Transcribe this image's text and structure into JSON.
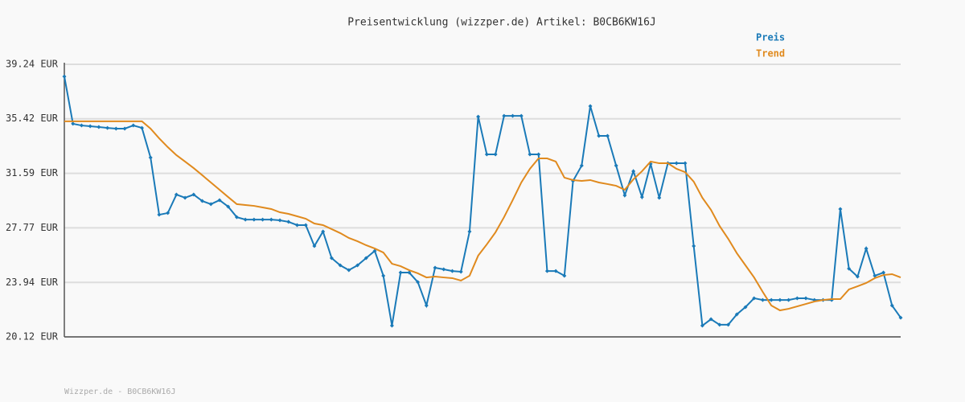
{
  "chart_data": {
    "type": "line",
    "title": "Preisentwicklung (wizzper.de) Artikel: B0CB6KW16J",
    "footer": "Wizzper.de - B0CB6KW16J",
    "ylim": [
      20.12,
      39.24
    ],
    "yticks": [
      {
        "value": 20.12,
        "label": "20.12 EUR"
      },
      {
        "value": 23.94,
        "label": "23.94 EUR"
      },
      {
        "value": 27.77,
        "label": "27.77 EUR"
      },
      {
        "value": 31.59,
        "label": "31.59 EUR"
      },
      {
        "value": 35.42,
        "label": "35.42 EUR"
      },
      {
        "value": 39.24,
        "label": "39.24 EUR"
      }
    ],
    "grid": true,
    "legend": "top-right",
    "series": [
      {
        "name": "Preis",
        "color": "#1a7ab8",
        "markers": true,
        "values": [
          38.39,
          35.07,
          34.95,
          34.9,
          34.84,
          34.78,
          34.73,
          34.73,
          34.95,
          34.78,
          32.7,
          28.69,
          28.81,
          30.1,
          29.88,
          30.1,
          29.65,
          29.43,
          29.71,
          29.26,
          28.52,
          28.35,
          28.35,
          28.35,
          28.35,
          28.3,
          28.19,
          27.96,
          27.96,
          26.49,
          27.51,
          25.65,
          25.14,
          24.8,
          25.14,
          25.65,
          26.15,
          24.41,
          20.91,
          24.63,
          24.63,
          23.96,
          22.32,
          24.97,
          24.86,
          24.74,
          24.69,
          27.51,
          35.57,
          32.92,
          32.92,
          35.62,
          35.62,
          35.62,
          32.92,
          32.92,
          24.74,
          24.74,
          24.41,
          31.06,
          32.13,
          36.31,
          34.22,
          34.22,
          32.13,
          30.05,
          31.74,
          29.93,
          32.25,
          29.88,
          32.3,
          32.3,
          32.3,
          26.49,
          20.91,
          21.36,
          20.97,
          20.97,
          21.7,
          22.21,
          22.83,
          22.71,
          22.71,
          22.71,
          22.71,
          22.83,
          22.83,
          22.71,
          22.71,
          22.71,
          29.09,
          24.91,
          24.35,
          26.32,
          24.41,
          24.63,
          22.32,
          21.47
        ]
      },
      {
        "name": "Trend",
        "color": "#e08a1e",
        "markers": false,
        "values": [
          35.24,
          35.24,
          35.24,
          35.24,
          35.24,
          35.24,
          35.24,
          35.24,
          35.24,
          35.24,
          34.73,
          34.05,
          33.43,
          32.87,
          32.42,
          31.96,
          31.46,
          30.95,
          30.44,
          29.93,
          29.43,
          29.37,
          29.31,
          29.2,
          29.09,
          28.86,
          28.75,
          28.58,
          28.41,
          28.07,
          27.96,
          27.68,
          27.4,
          27.06,
          26.83,
          26.55,
          26.32,
          26.04,
          25.25,
          25.08,
          24.8,
          24.58,
          24.29,
          24.35,
          24.29,
          24.24,
          24.07,
          24.41,
          25.82,
          26.61,
          27.45,
          28.52,
          29.71,
          30.95,
          31.91,
          32.64,
          32.64,
          32.42,
          31.29,
          31.12,
          31.06,
          31.12,
          30.95,
          30.84,
          30.72,
          30.44,
          31.17,
          31.74,
          32.42,
          32.3,
          32.3,
          31.91,
          31.68,
          31.01,
          29.88,
          29.03,
          27.9,
          27.0,
          25.99,
          25.14,
          24.29,
          23.28,
          22.32,
          21.98,
          22.09,
          22.26,
          22.43,
          22.6,
          22.71,
          22.77,
          22.77,
          23.45,
          23.67,
          23.9,
          24.24,
          24.46,
          24.52,
          24.29
        ]
      }
    ]
  }
}
